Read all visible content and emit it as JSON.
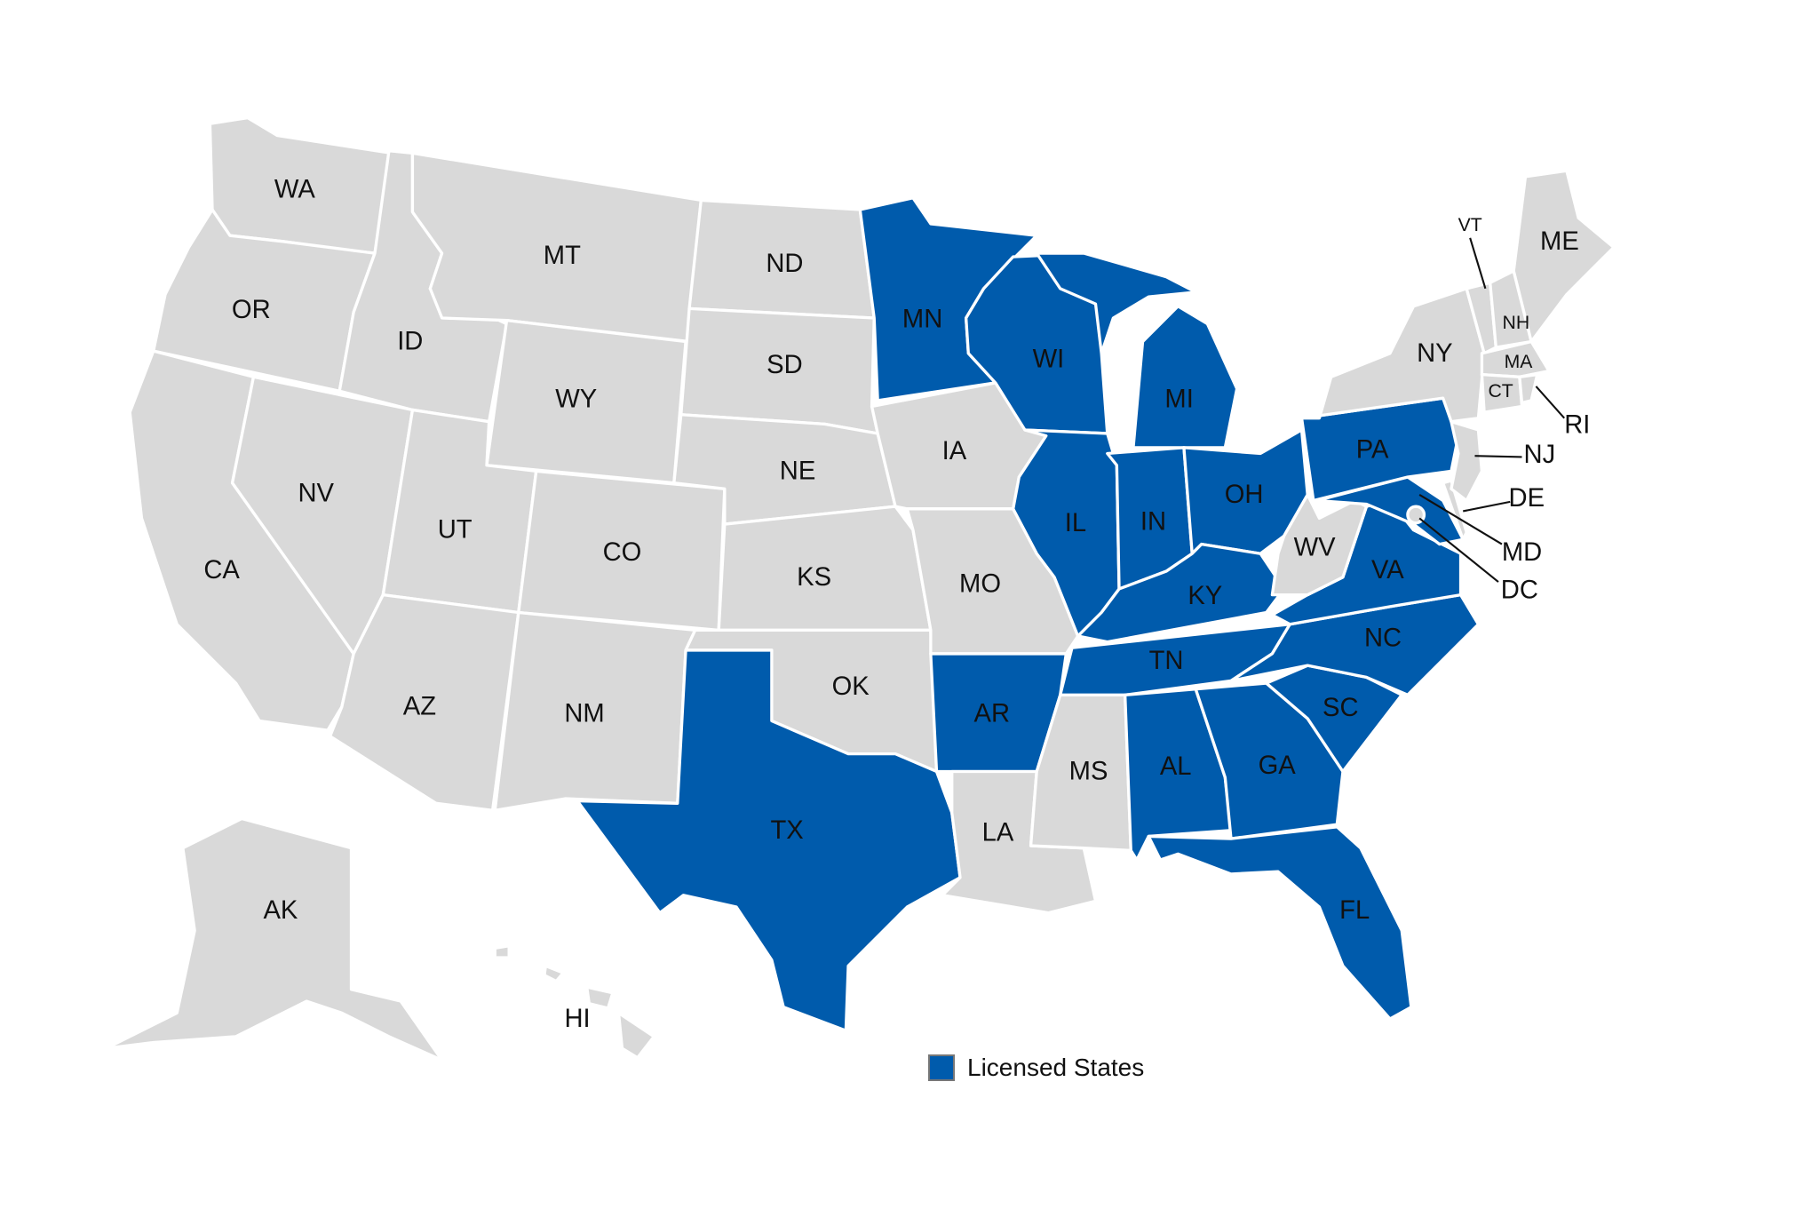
{
  "colors": {
    "licensed": "#005bac",
    "unlicensed": "#d9d9d9",
    "border": "#ffffff"
  },
  "legend": {
    "label": "Licensed States",
    "color": "#005bac"
  },
  "states": [
    {
      "code": "WA",
      "licensed": false
    },
    {
      "code": "OR",
      "licensed": false
    },
    {
      "code": "CA",
      "licensed": false
    },
    {
      "code": "NV",
      "licensed": false
    },
    {
      "code": "ID",
      "licensed": false
    },
    {
      "code": "MT",
      "licensed": false
    },
    {
      "code": "WY",
      "licensed": false
    },
    {
      "code": "UT",
      "licensed": false
    },
    {
      "code": "CO",
      "licensed": false
    },
    {
      "code": "AZ",
      "licensed": false
    },
    {
      "code": "NM",
      "licensed": false
    },
    {
      "code": "ND",
      "licensed": false
    },
    {
      "code": "SD",
      "licensed": false
    },
    {
      "code": "NE",
      "licensed": false
    },
    {
      "code": "KS",
      "licensed": false
    },
    {
      "code": "OK",
      "licensed": false
    },
    {
      "code": "TX",
      "licensed": true
    },
    {
      "code": "MN",
      "licensed": true
    },
    {
      "code": "IA",
      "licensed": false
    },
    {
      "code": "MO",
      "licensed": false
    },
    {
      "code": "AR",
      "licensed": true
    },
    {
      "code": "LA",
      "licensed": false
    },
    {
      "code": "MS",
      "licensed": false
    },
    {
      "code": "WI",
      "licensed": true
    },
    {
      "code": "MI",
      "licensed": true
    },
    {
      "code": "IL",
      "licensed": true
    },
    {
      "code": "IN",
      "licensed": true
    },
    {
      "code": "OH",
      "licensed": true
    },
    {
      "code": "KY",
      "licensed": true
    },
    {
      "code": "TN",
      "licensed": true
    },
    {
      "code": "AL",
      "licensed": true
    },
    {
      "code": "GA",
      "licensed": true
    },
    {
      "code": "FL",
      "licensed": true
    },
    {
      "code": "SC",
      "licensed": true
    },
    {
      "code": "NC",
      "licensed": true
    },
    {
      "code": "VA",
      "licensed": true
    },
    {
      "code": "WV",
      "licensed": false
    },
    {
      "code": "MD",
      "licensed": true
    },
    {
      "code": "DE",
      "licensed": false
    },
    {
      "code": "DC",
      "licensed": false
    },
    {
      "code": "PA",
      "licensed": true
    },
    {
      "code": "NJ",
      "licensed": false
    },
    {
      "code": "NY",
      "licensed": false
    },
    {
      "code": "VT",
      "licensed": false
    },
    {
      "code": "NH",
      "licensed": false
    },
    {
      "code": "ME",
      "licensed": false
    },
    {
      "code": "MA",
      "licensed": false
    },
    {
      "code": "CT",
      "licensed": false
    },
    {
      "code": "RI",
      "licensed": false
    },
    {
      "code": "AK",
      "licensed": false
    },
    {
      "code": "HI",
      "licensed": false
    }
  ]
}
